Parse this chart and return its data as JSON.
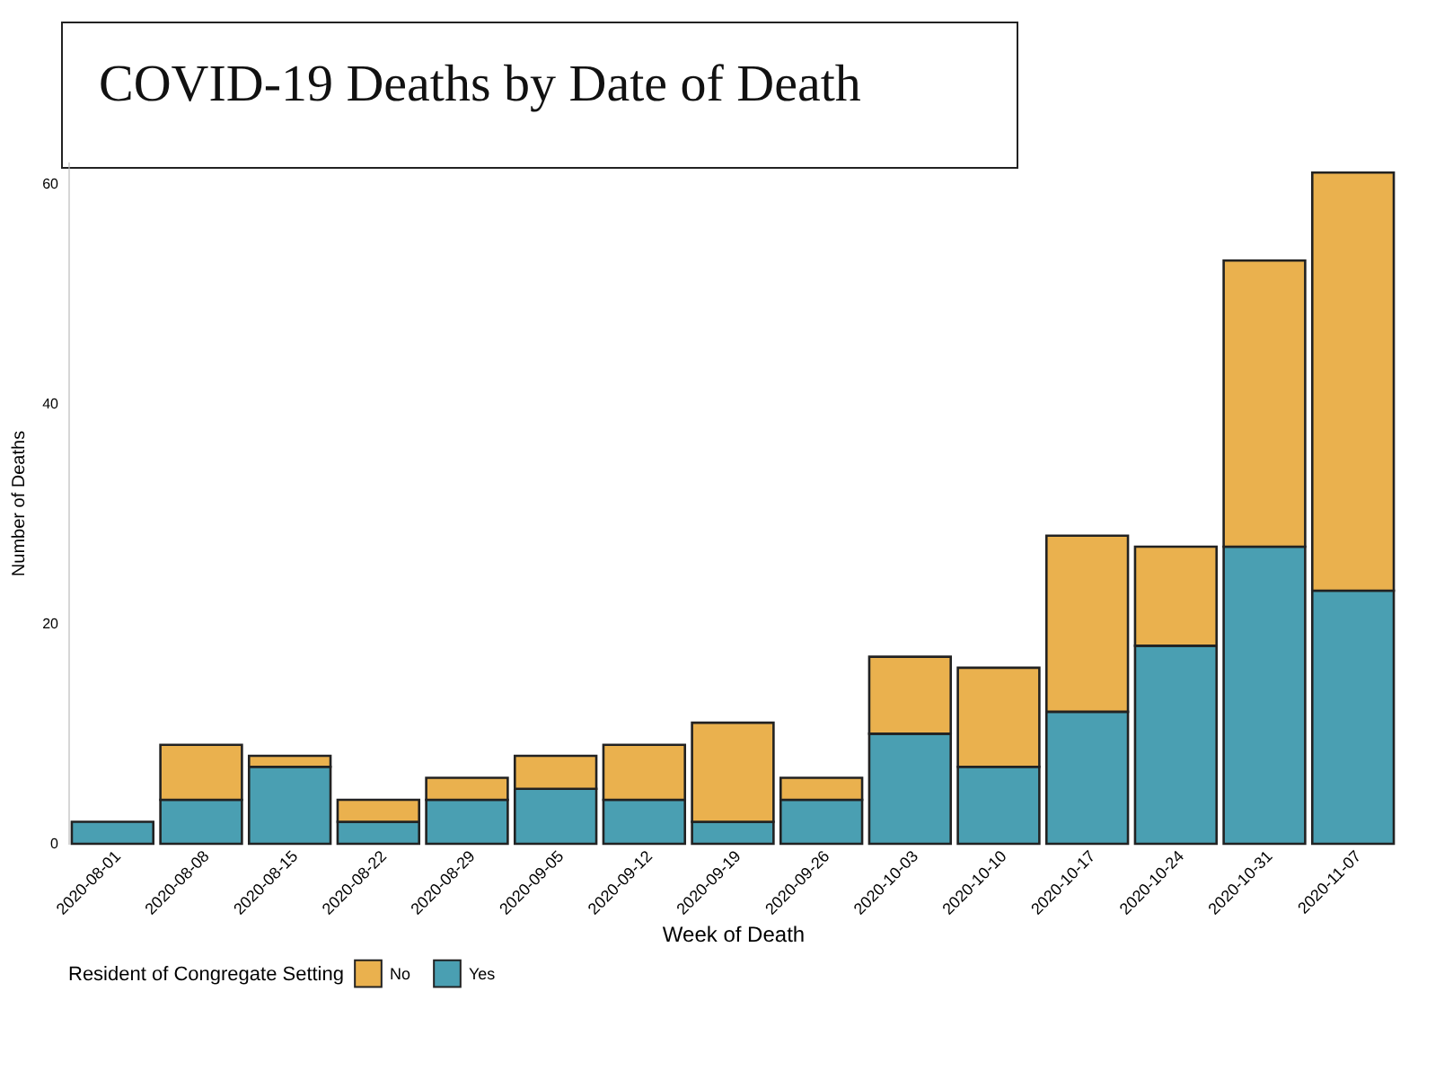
{
  "chart_data": {
    "type": "bar",
    "title": "COVID-19 Deaths by Date of Death",
    "xlabel": "Week of Death",
    "ylabel": "Number of Deaths",
    "legend_title": "Resident of Congregate Setting",
    "categories": [
      "2020-08-01",
      "2020-08-08",
      "2020-08-15",
      "2020-08-22",
      "2020-08-29",
      "2020-09-05",
      "2020-09-12",
      "2020-09-19",
      "2020-09-26",
      "2020-10-03",
      "2020-10-10",
      "2020-10-17",
      "2020-10-24",
      "2020-10-31",
      "2020-11-07"
    ],
    "series": [
      {
        "name": "Yes",
        "color": "#4a9fb2",
        "values": [
          2,
          4,
          7,
          2,
          4,
          5,
          4,
          2,
          4,
          10,
          7,
          12,
          18,
          27,
          23
        ]
      },
      {
        "name": "No",
        "color": "#eab14e",
        "values": [
          null,
          5,
          1,
          2,
          2,
          3,
          5,
          9,
          2,
          7,
          9,
          16,
          9,
          26,
          38
        ]
      }
    ],
    "stacked": true,
    "ylim": [
      0,
      62
    ],
    "yticks": [
      0,
      20,
      40,
      60
    ],
    "grid": false,
    "legend": "bottom"
  }
}
